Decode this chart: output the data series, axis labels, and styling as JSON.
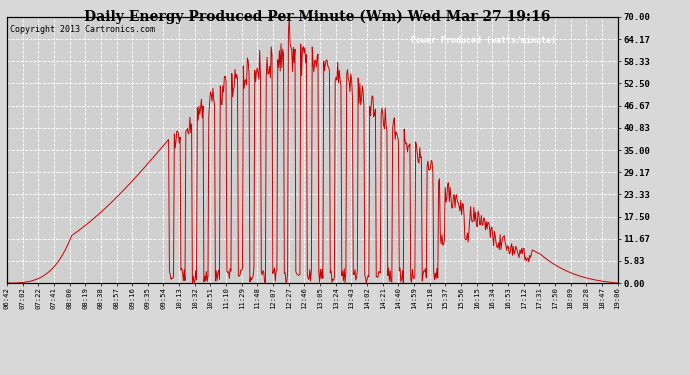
{
  "title": "Daily Energy Produced Per Minute (Wm) Wed Mar 27 19:16",
  "copyright": "Copyright 2013 Cartronics.com",
  "legend_label": "Power Produced (watts/minute)",
  "legend_bg": "#cc0000",
  "line_color": "#cc0000",
  "bg_color": "#d8d8d8",
  "plot_bg_color": "#d0d0d0",
  "grid_color": "#ffffff",
  "ylim": [
    0,
    70.0
  ],
  "yticks": [
    0.0,
    5.83,
    11.67,
    17.5,
    23.33,
    29.17,
    35.0,
    40.83,
    46.67,
    52.5,
    58.33,
    64.17,
    70.0
  ],
  "ytick_labels": [
    "0.00",
    "5.83",
    "11.67",
    "17.50",
    "23.33",
    "29.17",
    "35.00",
    "40.83",
    "46.67",
    "52.50",
    "58.33",
    "64.17",
    "70.00"
  ],
  "xtick_labels": [
    "06:42",
    "07:02",
    "07:22",
    "07:41",
    "08:00",
    "08:19",
    "08:38",
    "08:57",
    "09:16",
    "09:35",
    "09:54",
    "10:13",
    "10:32",
    "10:51",
    "11:10",
    "11:29",
    "11:48",
    "12:07",
    "12:27",
    "12:46",
    "13:05",
    "13:24",
    "13:43",
    "14:02",
    "14:21",
    "14:40",
    "14:59",
    "15:18",
    "15:37",
    "15:56",
    "16:15",
    "16:34",
    "16:53",
    "17:12",
    "17:31",
    "17:50",
    "18:09",
    "18:28",
    "18:47",
    "19:06"
  ]
}
